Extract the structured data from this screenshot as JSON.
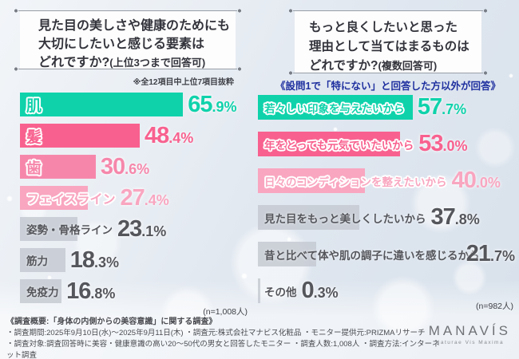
{
  "charts_ui": {
    "left": {
      "title_lines": [
        "見た目の美しさや健康のためにも",
        "大切にしたいと感じる要素は"
      ],
      "title_tail_main": "どれですか?",
      "title_tail_sub": "(上位3つまで回答可)",
      "note": "※全12項目中上位7項目抜粋",
      "sample": "(n=1,008人)"
    },
    "right": {
      "title_lines": [
        "もっと良くしたいと思った",
        "理由として当てはまるものは"
      ],
      "title_tail_main": "どれですか?",
      "title_tail_sub": "(複数回答可)",
      "note": "《設問1で「特にない」と回答した方以外が回答》",
      "sample": "(n=982人)"
    }
  },
  "chart_data": [
    {
      "type": "bar",
      "orientation": "horizontal",
      "title": "見た目の美しさや健康のためにも大切にしたいと感じる要素はどれですか?(上位3つまで回答可)",
      "note": "※全12項目中上位7項目抜粋",
      "sample_size": "(n=1,008人)",
      "unit": "%",
      "value_range": [
        0,
        70
      ],
      "categories": [
        "肌",
        "髪",
        "歯",
        "フェイスライン",
        "姿勢・骨格ライン",
        "筋力",
        "免疫力"
      ],
      "values": [
        65.9,
        48.4,
        30.6,
        27.4,
        23.1,
        18.3,
        16.8
      ],
      "bars": [
        {
          "label": "肌",
          "value": 65.9,
          "display": "65.9",
          "color": "#0fd2ab",
          "style": "colored"
        },
        {
          "label": "髪",
          "value": 48.4,
          "display": "48.4",
          "color": "#f8618f",
          "style": "colored"
        },
        {
          "label": "歯",
          "value": 30.6,
          "display": "30.6",
          "color": "#f687ab",
          "style": "colored"
        },
        {
          "label": "フェイスライン",
          "value": 27.4,
          "display": "27.4",
          "color": "#f9a6c0",
          "style": "colored"
        },
        {
          "label": "姿勢・骨格ライン",
          "value": 23.1,
          "display": "23.1",
          "color": "#c6cbd2",
          "style": "gray"
        },
        {
          "label": "筋力",
          "value": 18.3,
          "display": "18.3",
          "color": "#c6cbd2",
          "style": "gray"
        },
        {
          "label": "免疫力",
          "value": 16.8,
          "display": "16.8",
          "color": "#c6cbd2",
          "style": "gray"
        }
      ]
    },
    {
      "type": "bar",
      "orientation": "horizontal",
      "title": "もっと良くしたいと思った理由として当てはまるものはどれですか?(複数回答可)",
      "note": "《設問1で「特にない」と回答した方以外が回答》",
      "sample_size": "(n=982人)",
      "unit": "%",
      "value_range": [
        0,
        60
      ],
      "categories": [
        "若々しい印象を与えたいから",
        "年をとっても元気でいたいから",
        "日々のコンディションを整えたいから",
        "見た目をもっと美しくしたいから",
        "昔と比べて体や肌の調子に違いを感じるから",
        "その他"
      ],
      "values": [
        57.7,
        53.0,
        40.0,
        37.8,
        21.7,
        0.3
      ],
      "bars": [
        {
          "label": "若々しい印象を与えたいから",
          "value": 57.7,
          "display": "57.7",
          "color": "#0fd2ab",
          "style": "colored"
        },
        {
          "label": "年をとっても元気でいたいから",
          "value": 53.0,
          "display": "53.0",
          "color": "#f8618f",
          "style": "colored"
        },
        {
          "label": "日々のコンディションを整えたいから",
          "value": 40.0,
          "display": "40.0",
          "color": "#f9a6c0",
          "style": "colored"
        },
        {
          "label": "見た目をもっと美しくしたいから",
          "value": 37.8,
          "display": "37.8",
          "color": "#c6cbd2",
          "style": "gray"
        },
        {
          "label": "昔と比べて体や肌の調子に違いを感じるから",
          "value": 21.7,
          "display": "21.7",
          "color": "#c6cbd2",
          "style": "gray"
        },
        {
          "label": "その他",
          "value": 0.3,
          "display": "0.3",
          "color": "#c6cbd2",
          "style": "gray"
        }
      ]
    }
  ],
  "colors": {
    "teal": "#0fd2ab",
    "pink_strong": "#f8618f",
    "pink_mid": "#f687ab",
    "pink_light": "#f9a6c0",
    "gray_bar": "#c6cbd2",
    "gray_text": "#54565c",
    "note_blue": "#1e2f9f"
  },
  "footer": {
    "lines": [
      "《調査概要:「身体の内側からの美容意識」に関する調査》",
      "・調査期間:2025年9月10日(水)〜2025年9月11日(木)  ・調査元:株式会社マナビス化粧品  ・モニター提供元:PRIZMAリサーチ",
      "・調査対象:調査回答時に美容・健康意識の高い20〜50代の男女と回答したモニター  ・調査人数:1,008人  ・調査方法:インターネット調査"
    ],
    "logo": "MANAVÍS",
    "logo_sub": "Naturae Vis Maxima"
  }
}
